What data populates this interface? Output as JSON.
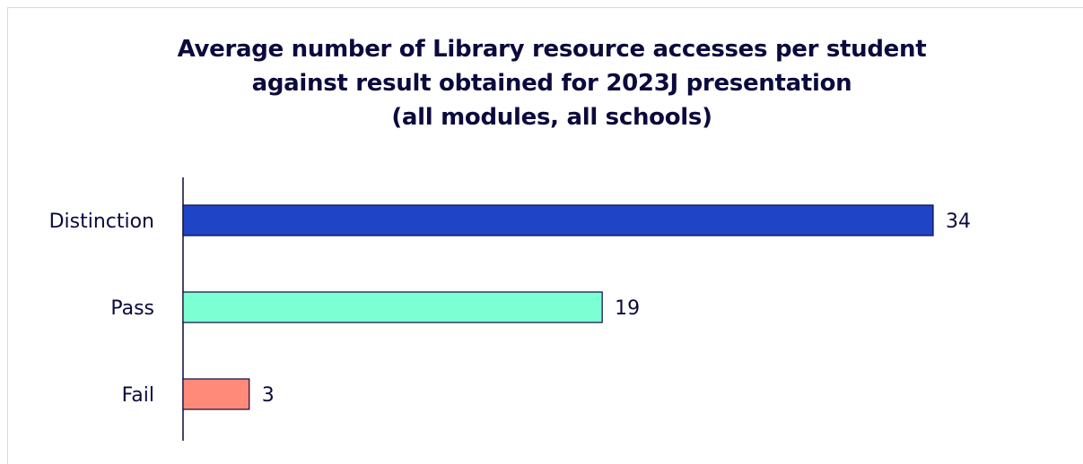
{
  "chart_data": {
    "type": "bar",
    "orientation": "horizontal",
    "title_lines": [
      "Average number of Library resource accesses per student",
      "against result obtained for 2023J presentation",
      "(all modules, all schools)"
    ],
    "categories": [
      "Distinction",
      "Pass",
      "Fail"
    ],
    "values": [
      34,
      19,
      3
    ],
    "colors": [
      "#1f45c6",
      "#7dffd4",
      "#ff8a7a"
    ],
    "value_labels": [
      "34",
      "19",
      "3"
    ],
    "xlim": [
      0,
      34
    ],
    "grid": false,
    "legend": false
  }
}
